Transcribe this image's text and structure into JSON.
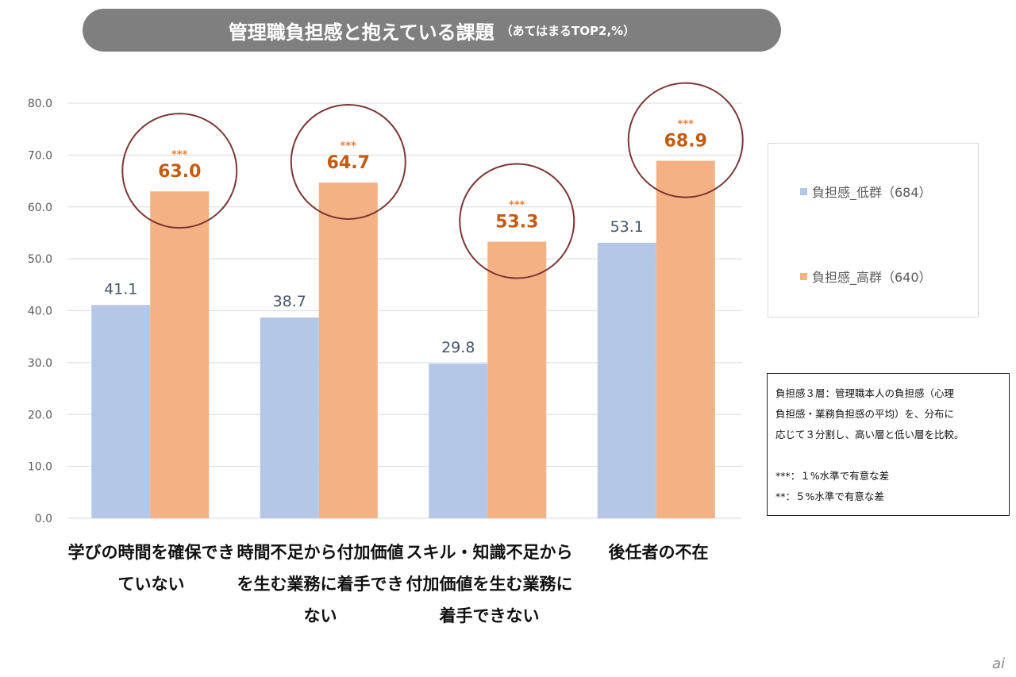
{
  "chart_data": {
    "type": "bar",
    "title": "管理職負担感と抱えている課題",
    "subtitle": "（あてはまるTOP2,%）",
    "categories": [
      "学びの時間を確保できていない",
      "時間不足から付加価値を生む業務に着手できない",
      "スキル・知識不足から付加価値を生む業務に着手できない",
      "後任者の不在"
    ],
    "series": [
      {
        "name": "負担感_低群（684）",
        "color": "#b4c7e7",
        "values": [
          41.1,
          38.7,
          29.8,
          53.1
        ]
      },
      {
        "name": "負担感_高群（640）",
        "color": "#f4b183",
        "values": [
          63.0,
          64.7,
          53.3,
          68.9
        ]
      }
    ],
    "significance": [
      "***",
      "***",
      "***",
      "***"
    ],
    "yticks": [
      "0.0",
      "10.0",
      "20.0",
      "30.0",
      "40.0",
      "50.0",
      "60.0",
      "70.0",
      "80.0"
    ],
    "ylim": [
      0,
      80
    ],
    "grid": true,
    "legend_position": "right",
    "xlabel": "",
    "ylabel": ""
  },
  "note": {
    "lines": [
      "負担感３層：管理職本人の負担感（心理",
      "負担感・業務負担感の平均）を、分布に",
      "応じて３分割し、高い層と低い層を比較。",
      "",
      "***：１%水準で有意な差",
      "**：５%水準で有意な差"
    ]
  },
  "logo": "ai"
}
